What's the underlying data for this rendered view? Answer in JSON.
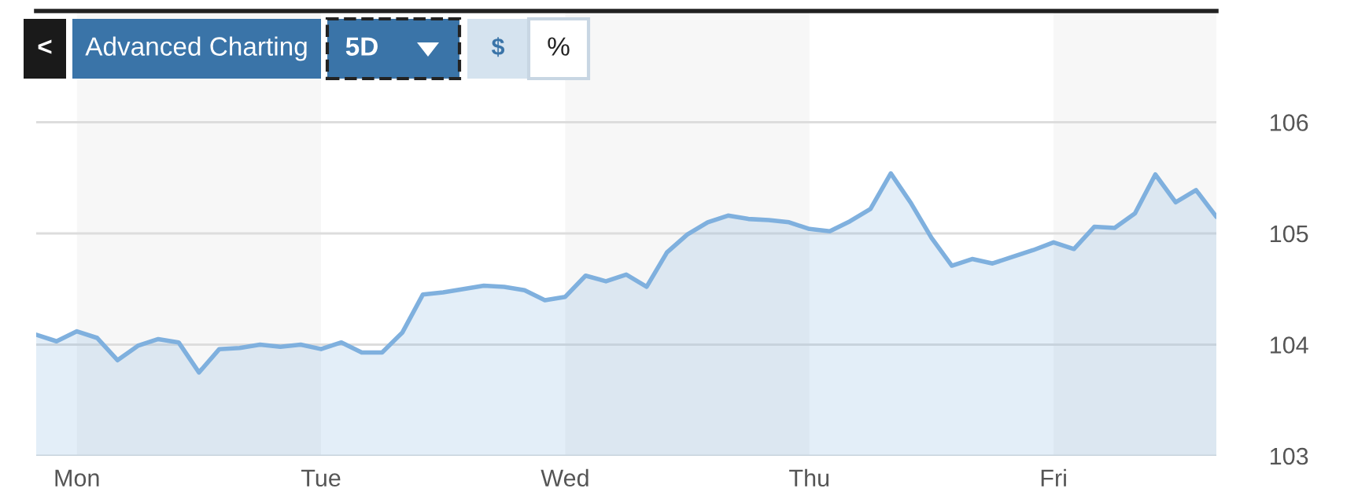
{
  "chart_data": {
    "type": "area",
    "annotations": [
      "<",
      "Advanced Charting",
      "5D",
      "$",
      "%"
    ],
    "categories": [
      null,
      null,
      "Mon",
      null,
      null,
      null,
      null,
      null,
      null,
      null,
      null,
      null,
      null,
      null,
      "Tue",
      null,
      null,
      null,
      null,
      null,
      null,
      null,
      null,
      null,
      null,
      null,
      "Wed",
      null,
      null,
      null,
      null,
      null,
      null,
      null,
      null,
      null,
      null,
      null,
      "Thu",
      null,
      null,
      null,
      null,
      null,
      null,
      null,
      null,
      null,
      null,
      null,
      "Fri",
      null,
      null,
      null,
      null,
      null,
      null,
      null,
      null
    ],
    "ylim": [
      103,
      107
    ],
    "yticks": [
      103,
      104,
      105,
      106
    ],
    "grid": "y",
    "series": [
      {
        "color": "#7fb0de",
        "values": [
          104.09,
          104.03,
          104.12,
          104.06,
          103.86,
          103.99,
          104.05,
          104.02,
          103.75,
          103.96,
          103.97,
          104.0,
          103.98,
          104.0,
          103.96,
          104.02,
          103.93,
          103.93,
          104.11,
          104.45,
          104.47,
          104.5,
          104.53,
          104.52,
          104.49,
          104.4,
          104.43,
          104.62,
          104.57,
          104.63,
          104.52,
          104.83,
          104.99,
          105.1,
          105.16,
          105.13,
          105.12,
          105.1,
          105.04,
          105.02,
          105.11,
          105.22,
          105.54,
          105.27,
          104.96,
          104.71,
          104.77,
          104.73,
          104.79,
          104.85,
          104.92,
          104.86,
          105.06,
          105.05,
          105.18,
          105.53,
          105.28,
          105.39,
          105.15
        ]
      }
    ]
  }
}
